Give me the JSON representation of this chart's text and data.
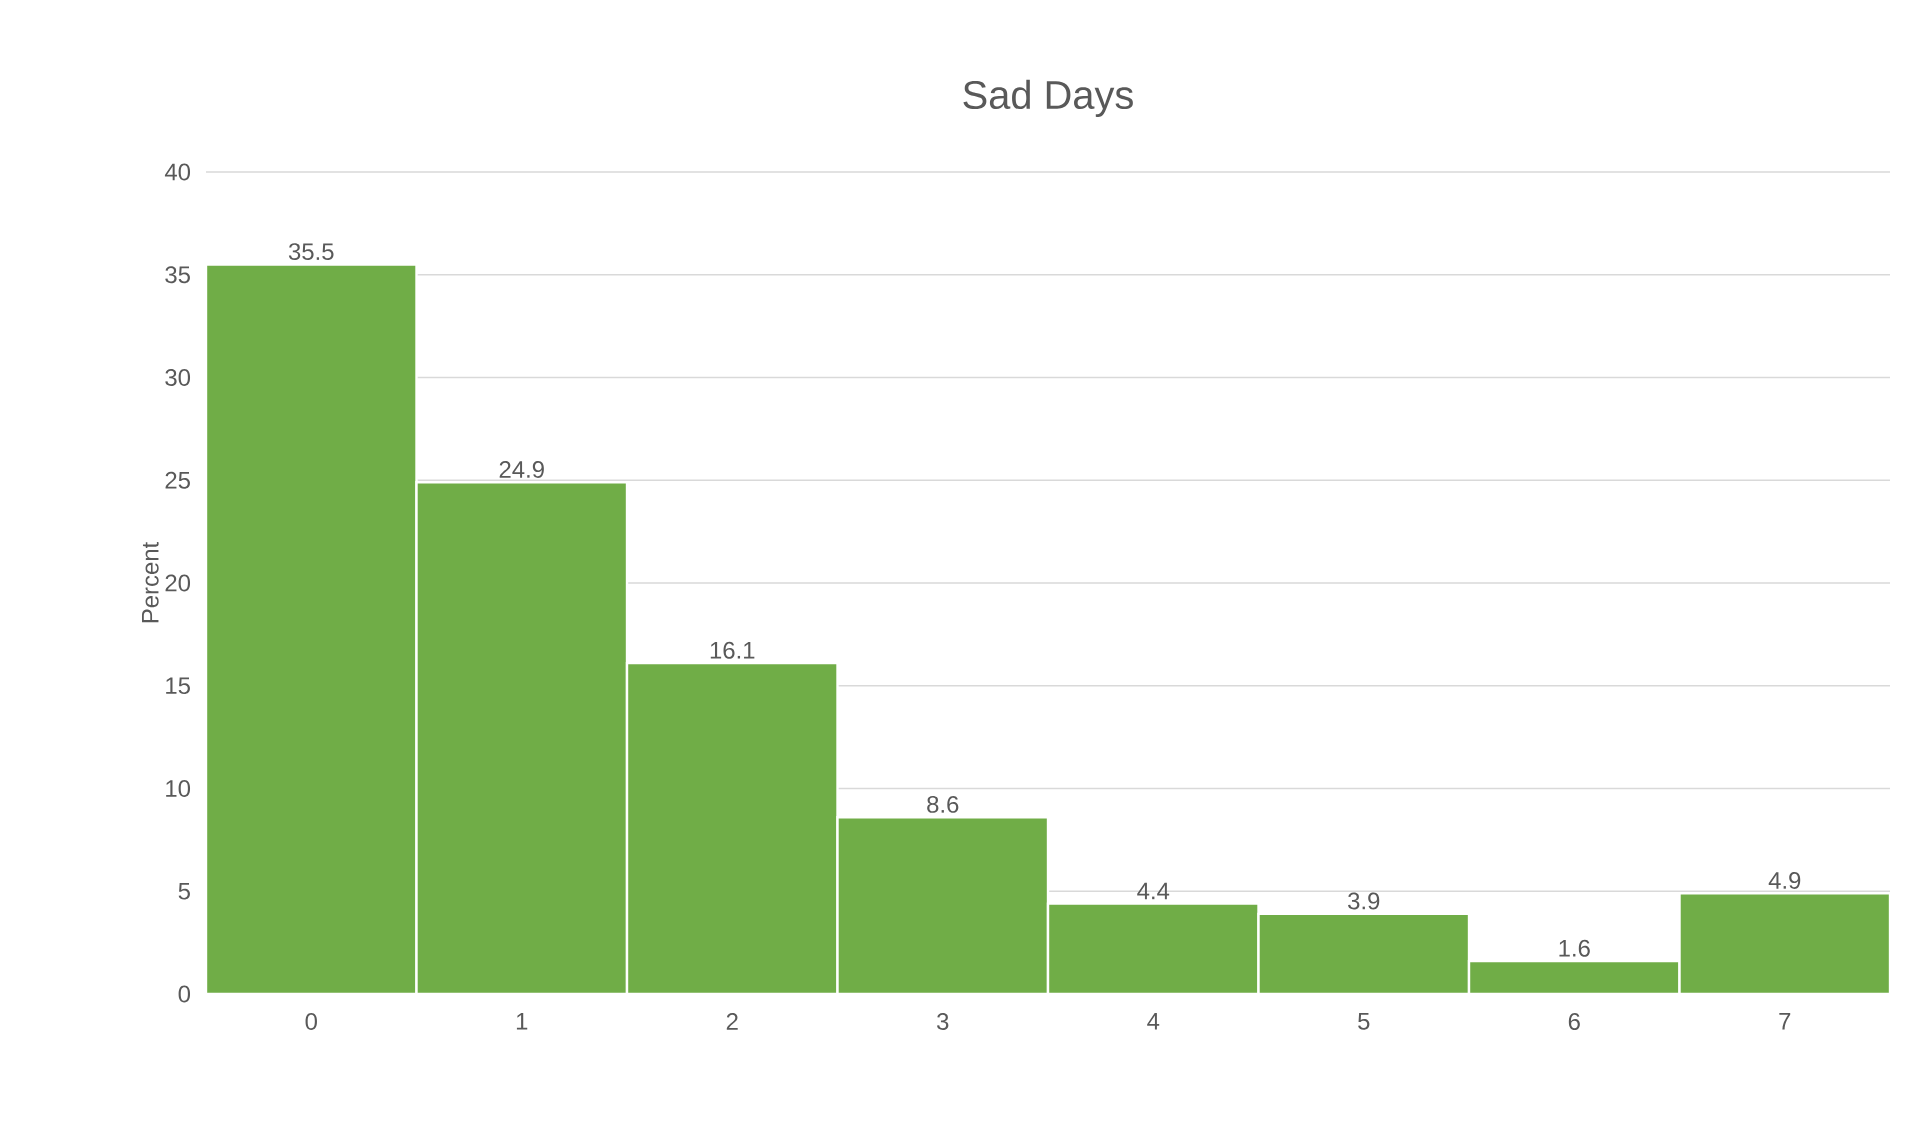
{
  "chart_data": {
    "type": "bar",
    "title": "Sad Days",
    "ylabel": "Percent",
    "categories": [
      "0",
      "1",
      "2",
      "3",
      "4",
      "5",
      "6",
      "7"
    ],
    "values": [
      35.5,
      24.9,
      16.1,
      8.6,
      4.4,
      3.9,
      1.6,
      4.9
    ],
    "color": "#70ad47",
    "ylim": [
      0,
      40
    ],
    "yticks": [
      0,
      5,
      10,
      15,
      20,
      25,
      30,
      35,
      40
    ],
    "grid": "y",
    "data_labels": true
  }
}
